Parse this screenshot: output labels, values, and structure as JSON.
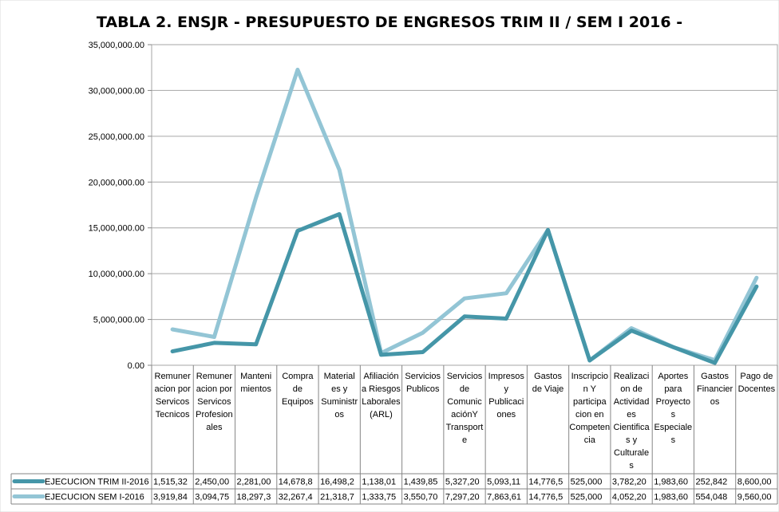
{
  "chart_data": {
    "type": "line",
    "title": "TABLA 2. ENSJR - PRESUPUESTO DE ENGRESOS TRIM II / SEM I 2016 -",
    "ylim": [
      0,
      35000000
    ],
    "yticks": [
      "0.00",
      "5,000,000.00",
      "10,000,000.00",
      "15,000,000.00",
      "20,000,000.00",
      "25,000,000.00",
      "30,000,000.00",
      "35,000,000.00"
    ],
    "categories": [
      [
        "Remuner",
        "acion por",
        "Servicos",
        "Tecnicos"
      ],
      [
        "Remuner",
        "acion por",
        "Servicos",
        "Profesion",
        "ales"
      ],
      [
        "Manteni",
        "mientos"
      ],
      [
        "Compra",
        "de",
        "Equipos"
      ],
      [
        "Material",
        "es y",
        "Suministr",
        "os"
      ],
      [
        "Afiliación",
        "a Riesgos",
        "Laborales",
        "(ARL)"
      ],
      [
        "Servicios",
        "Publicos"
      ],
      [
        "Servicios",
        "de",
        "Comunic",
        "aciónY",
        "Transport",
        "e"
      ],
      [
        "Impresos",
        "y",
        "Publicaci",
        "ones"
      ],
      [
        "Gastos",
        "de Viaje"
      ],
      [
        "Inscripcio",
        "n Y",
        "participa",
        "cion en",
        "Competen",
        "cia"
      ],
      [
        "Realizaci",
        "on de",
        "Actividad",
        "es",
        "Cientifica",
        "s y",
        "Culturale",
        "s"
      ],
      [
        "Aportes",
        "para",
        "Proyecto",
        "s",
        "Especiale",
        "s"
      ],
      [
        "Gastos",
        "Financier",
        "os"
      ],
      [
        "Pago de",
        "Docentes"
      ]
    ],
    "series": [
      {
        "name": "EJECUCION TRIM II-2016",
        "color": "#4596a8",
        "values": [
          1515320,
          2450000,
          2281000,
          14678800,
          16498200,
          1138010,
          1439850,
          5327200,
          5093110,
          14776500,
          525000,
          3782200,
          1983600,
          252842,
          8600000
        ],
        "labels": [
          "1,515,32",
          "2,450,00",
          "2,281,00",
          "14,678,8",
          "16,498,2",
          "1,138,01",
          "1,439,85",
          "5,327,20",
          "5,093,11",
          "14,776,5",
          "525,000",
          "3,782,20",
          "1,983,60",
          "252,842",
          "8,600,00"
        ]
      },
      {
        "name": "EJECUCION SEM I-2016",
        "color": "#93c5d5",
        "values": [
          3919840,
          3094750,
          18297300,
          32267400,
          21318700,
          1333750,
          3550700,
          7297200,
          7863610,
          14776500,
          525000,
          4052200,
          1983600,
          554048,
          9560000
        ],
        "labels": [
          "3,919,84",
          "3,094,75",
          "18,297,3",
          "32,267,4",
          "21,318,7",
          "1,333,75",
          "3,550,70",
          "7,297,20",
          "7,863,61",
          "14,776,5",
          "525,000",
          "4,052,20",
          "1,983,60",
          "554,048",
          "9,560,00"
        ]
      }
    ]
  }
}
